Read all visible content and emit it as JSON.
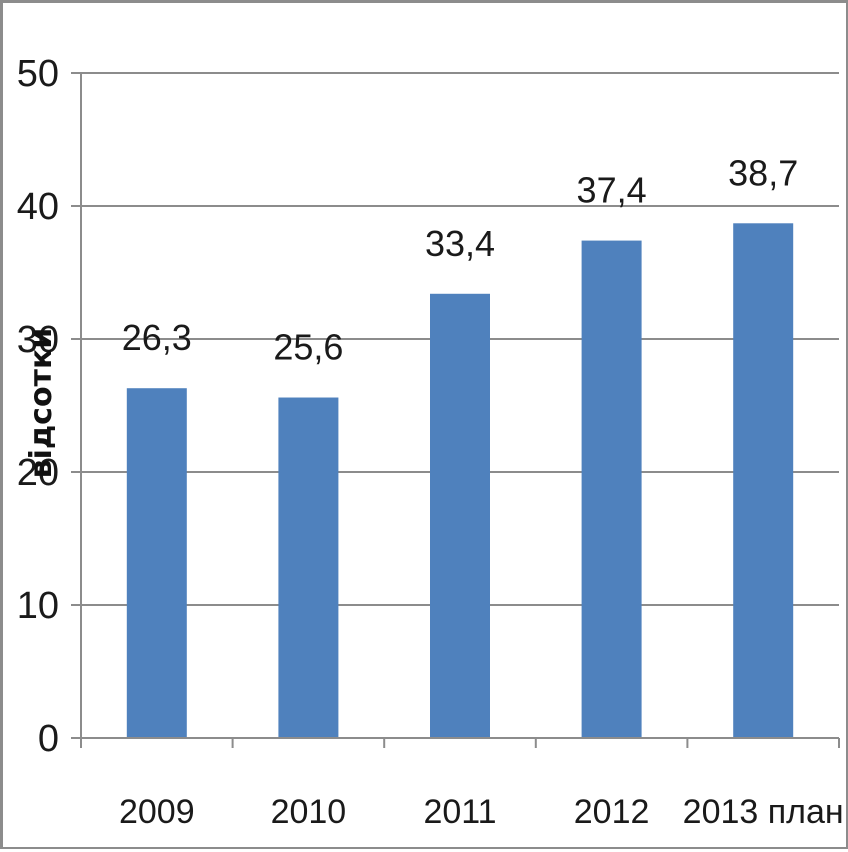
{
  "chart_data": {
    "type": "bar",
    "categories": [
      "2009",
      "2010",
      "2011",
      "2012",
      "2013 план"
    ],
    "values": [
      26.3,
      25.6,
      33.4,
      37.4,
      38.7
    ],
    "data_labels": [
      "26,3",
      "25,6",
      "33,4",
      "37,4",
      "38,7"
    ],
    "title": "",
    "xlabel": "",
    "ylabel": "відсотки",
    "ylim": [
      0,
      50
    ],
    "yticks": [
      0,
      10,
      20,
      30,
      40,
      50
    ],
    "ytick_labels": [
      "0",
      "10",
      "20",
      "30",
      "40",
      "50"
    ],
    "grid": true,
    "legend": "none",
    "colors": {
      "bar": "#4f81bd",
      "grid": "#8c8c8c",
      "axis": "#8c8c8c"
    }
  }
}
